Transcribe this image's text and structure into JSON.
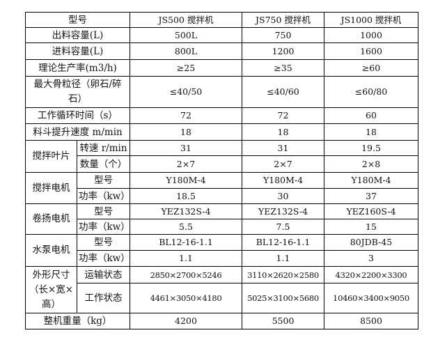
{
  "header": {
    "label": "型号",
    "models": [
      "JS500 搅拌机",
      "JS750 搅拌机",
      "JS1000 搅拌机"
    ]
  },
  "rows": [
    {
      "label": "出料容量(L)",
      "values": [
        "500L",
        "750",
        "1000"
      ]
    },
    {
      "label": "进料容量(L)",
      "values": [
        "800L",
        "1200",
        "1600"
      ]
    },
    {
      "label": "理论生产率(m3/h)",
      "values": [
        "≥25",
        "≥35",
        "≥60"
      ]
    },
    {
      "label": "最大骨粒径（卵石/碎石）",
      "values": [
        "≤40/50",
        "≤40/60",
        "≤60/80"
      ]
    },
    {
      "label": "工作循环时间（s）",
      "values": [
        "72",
        "72",
        "60"
      ]
    },
    {
      "label": "料斗提升速度 m/min",
      "values": [
        "18",
        "18",
        "18"
      ]
    }
  ],
  "groups": [
    {
      "label": "搅拌叶片",
      "sub": [
        {
          "label": "转速 r/min",
          "values": [
            "31",
            "31",
            "19.5"
          ]
        },
        {
          "label": "数量（个）",
          "values": [
            "2×7",
            "2×7",
            "2×8"
          ]
        }
      ]
    },
    {
      "label": "搅拌电机",
      "sub": [
        {
          "label": "型号",
          "values": [
            "Y180M-4",
            "Y180M-4",
            "Y180M-4"
          ]
        },
        {
          "label": "功率（kw）",
          "values": [
            "18.5",
            "30",
            "37"
          ]
        }
      ]
    },
    {
      "label": "卷扬电机",
      "sub": [
        {
          "label": "型号",
          "values": [
            "YEZ132S-4",
            "YEZ132S-4",
            "YEZ160S-4"
          ]
        },
        {
          "label": "功率（kw）",
          "values": [
            "5.5",
            "7.5",
            "15"
          ]
        }
      ]
    },
    {
      "label": "水泵电机",
      "sub": [
        {
          "label": "型号",
          "values": [
            "BL12-16-1.1",
            "BL12-16-1.1",
            "80JDB-45"
          ]
        },
        {
          "label": "功率（kw）",
          "values": [
            "1.1",
            "1.1",
            "3"
          ]
        }
      ]
    },
    {
      "label": "外形尺寸（长×宽×高）",
      "sub": [
        {
          "label": "运输状态",
          "values": [
            "2850×2700×5246",
            "3110×2620×2580",
            "4320×2200×3300"
          ]
        },
        {
          "label": "工作状态",
          "values": [
            "4461×3050×4180",
            "5025×3100×5680",
            "10460×3400×9050"
          ]
        }
      ]
    }
  ],
  "footer": {
    "label": "整机重量（kg）",
    "values": [
      "4200",
      "5500",
      "8500"
    ]
  }
}
